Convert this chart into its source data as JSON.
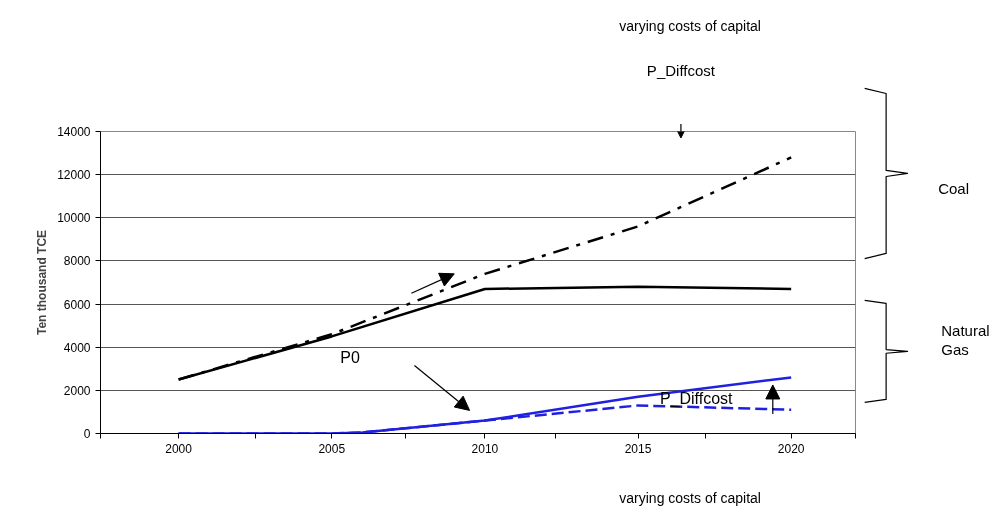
{
  "chart_data": {
    "type": "line",
    "ylabel": "Ten thousand TCE",
    "xlim": [
      1997.45,
      2022.1
    ],
    "xticks": [
      {
        "value": 1997.45,
        "label": null
      },
      {
        "value": 2000,
        "label": "2000"
      },
      {
        "value": 2002.5,
        "label": null
      },
      {
        "value": 2005,
        "label": "2005"
      },
      {
        "value": 2007.4,
        "label": null
      },
      {
        "value": 2010,
        "label": "2010"
      },
      {
        "value": 2012.3,
        "label": null
      },
      {
        "value": 2015,
        "label": "2015"
      },
      {
        "value": 2017.2,
        "label": null
      },
      {
        "value": 2020,
        "label": "2020"
      },
      {
        "value": 2022.1,
        "label": null
      }
    ],
    "ylim": [
      0,
      14000
    ],
    "yticks": [
      0,
      2000,
      4000,
      6000,
      8000,
      10000,
      12000,
      14000
    ],
    "grid": "y",
    "series": [
      {
        "color": "#000000",
        "line_style": "solid",
        "x": [
          2000,
          2005,
          2010,
          2015,
          2020
        ],
        "values": [
          2500,
          4500,
          6700,
          6800,
          6700
        ]
      },
      {
        "color": "#000000",
        "line_style": "dashdot",
        "x": [
          2000,
          2005,
          2010,
          2015,
          2020
        ],
        "values": [
          2500,
          4600,
          7400,
          9600,
          12800
        ]
      },
      {
        "color": "#2020e0",
        "line_style": "solid",
        "x": [
          2000,
          2005,
          2006,
          2010,
          2015,
          2020
        ],
        "values": [
          0,
          0,
          50,
          600,
          1700,
          2600
        ]
      },
      {
        "color": "#2020e0",
        "line_style": "dashed",
        "x": [
          2000,
          2005,
          2006,
          2010,
          2015,
          2020
        ],
        "values": [
          0,
          0,
          50,
          600,
          1300,
          1100
        ]
      }
    ],
    "annotations": [
      "varying costs of capital",
      "P_Diffcost",
      "Coal",
      "Natural\nGas",
      "P0",
      "P_Diffcost",
      "varying costs of capital"
    ]
  }
}
